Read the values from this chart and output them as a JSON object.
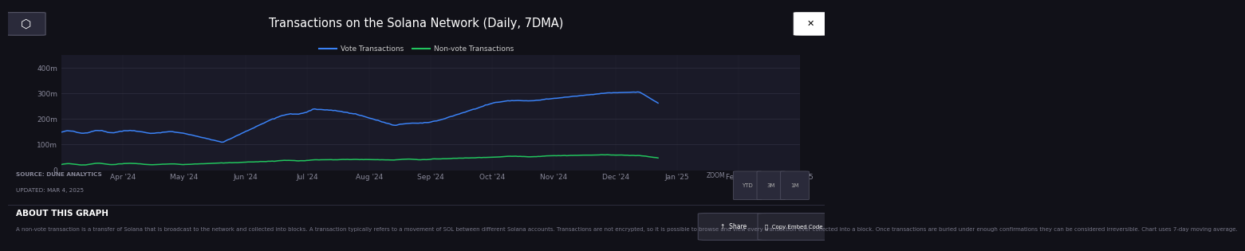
{
  "title": "Transactions on the Solana Network (Daily, 7DMA)",
  "bg_color": "#111118",
  "chart_bg": "#1a1a28",
  "purple_line_color": "#8b2fc9",
  "vote_color": "#3b82f6",
  "nonvote_color": "#22c55e",
  "legend_vote": "Vote Transactions",
  "legend_nonvote": "Non-vote Transactions",
  "ylim": [
    0,
    450000000
  ],
  "ytick_labels": [
    "0",
    "100m",
    "200m",
    "300m",
    "400m"
  ],
  "ytick_values": [
    0,
    100000000,
    200000000,
    300000000,
    400000000
  ],
  "xtick_labels": [
    "Apr '24",
    "May '24",
    "Jun '24",
    "Jul '24",
    "Aug '24",
    "Sep '24",
    "Oct '24",
    "Nov '24",
    "Dec '24",
    "Jan '25",
    "Feb '25",
    "Mar '25"
  ],
  "source_line1": "SOURCE: DUNE ANALYTICS",
  "source_line2": "UPDATED: MAR 4, 2025",
  "about_title": "ABOUT THIS GRAPH",
  "about_text": "A non-vote transaction is a transfer of Solana that is broadcast to the network and collected into blocks. A transaction typically refers to a movement of SOL between different Solana accounts. Transactions are not encrypted, so it is possible to browse and view every transaction ever collected into a block. Once transactions are buried under enough confirmations they can be considered irreversible. Chart uses 7-day moving average.",
  "zoom_label": "ZOOM",
  "zoom_buttons": [
    "YTD",
    "3M",
    "1M"
  ],
  "share_btn": "Share",
  "embed_btn": "Copy Embed Code"
}
